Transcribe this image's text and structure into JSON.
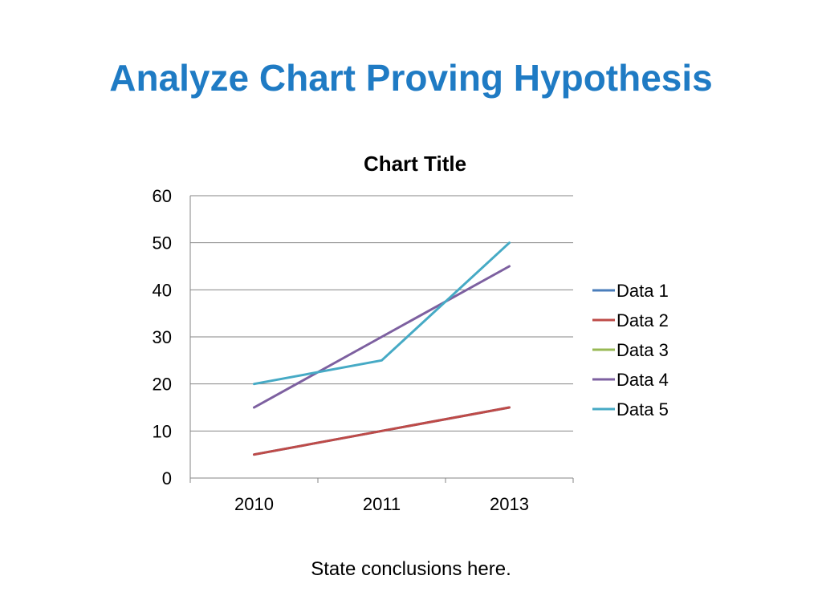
{
  "slide": {
    "title": "Analyze Chart Proving Hypothesis",
    "title_color": "#1F7BC4",
    "footer": "State conclusions here."
  },
  "chart_data": {
    "type": "line",
    "title": "Chart Title",
    "categories": [
      "2010",
      "2011",
      "2013"
    ],
    "ylim": [
      0,
      60
    ],
    "yticks": [
      0,
      10,
      20,
      30,
      40,
      50,
      60
    ],
    "grid": true,
    "legend_position": "right",
    "series": [
      {
        "name": "Data 1",
        "color": "#4A7EBB",
        "values": [
          5,
          10,
          15
        ]
      },
      {
        "name": "Data 2",
        "color": "#BE4B48",
        "values": [
          5,
          10,
          15
        ]
      },
      {
        "name": "Data 3",
        "color": "#98B954",
        "values": [
          null,
          null,
          null
        ]
      },
      {
        "name": "Data 4",
        "color": "#7D60A0",
        "values": [
          15,
          30,
          45
        ]
      },
      {
        "name": "Data 5",
        "color": "#46AAC5",
        "values": [
          20,
          25,
          50
        ]
      }
    ]
  }
}
